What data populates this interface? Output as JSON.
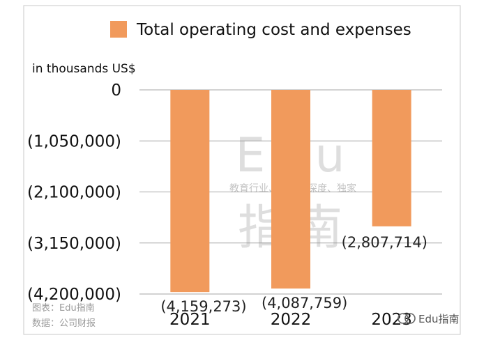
{
  "chart_data": {
    "type": "bar",
    "categories": [
      "2021",
      "2022",
      "2023"
    ],
    "series": [
      {
        "name": "Total operating cost and expenses",
        "values": [
          -4159273,
          -4087759,
          -2807714
        ],
        "color": "#f19a5c"
      }
    ],
    "data_labels": [
      "(4,159,273)",
      "(4,087,759)",
      "(2,807,714)"
    ],
    "unit_label": "in thousands US$",
    "ylim": [
      -4200000,
      0
    ],
    "yticks": [
      0,
      -1050000,
      -2100000,
      -3150000,
      -4200000
    ],
    "ytick_labels": [
      "0",
      "(1,050,000)",
      "(2,100,000)",
      "(3,150,000)",
      "(4,200,000)"
    ],
    "legend_position": "top",
    "grid": true
  },
  "watermark": {
    "main": "Edu",
    "sub": "指南",
    "tagline": "教育行业、前沿、深度、独家"
  },
  "footer": {
    "chart_credit": "图表：Edu指南",
    "data_source": "数据：公司财报",
    "brand": "Edu指南"
  }
}
